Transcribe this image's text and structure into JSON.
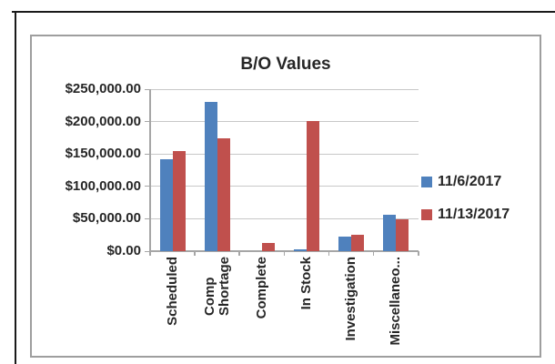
{
  "chart_data": {
    "type": "bar",
    "title": "B/O Values",
    "categories": [
      "Scheduled",
      "Comp\nShortage",
      "Complete",
      "In Stock",
      "Investigation",
      "Miscellaneo..."
    ],
    "series": [
      {
        "name": "11/6/2017",
        "color": "#4F81BD",
        "values": [
          142000,
          231000,
          0,
          3000,
          23000,
          56000
        ]
      },
      {
        "name": "11/13/2017",
        "color": "#C0504D",
        "values": [
          155000,
          174000,
          12000,
          201000,
          25000,
          49000
        ]
      }
    ],
    "y_ticks": [
      "$250,000.00",
      "$200,000.00",
      "$150,000.00",
      "$100,000.00",
      "$50,000.00",
      "$0.00"
    ],
    "ylim": [
      0,
      250000
    ],
    "grid": true,
    "legend_position": "right",
    "colors": {
      "gridline": "#c8c8c8",
      "axis": "#a6a6a6",
      "text": "#262626",
      "chart_border": "#9e9e9e",
      "table_border": "#1a1a1a"
    }
  }
}
